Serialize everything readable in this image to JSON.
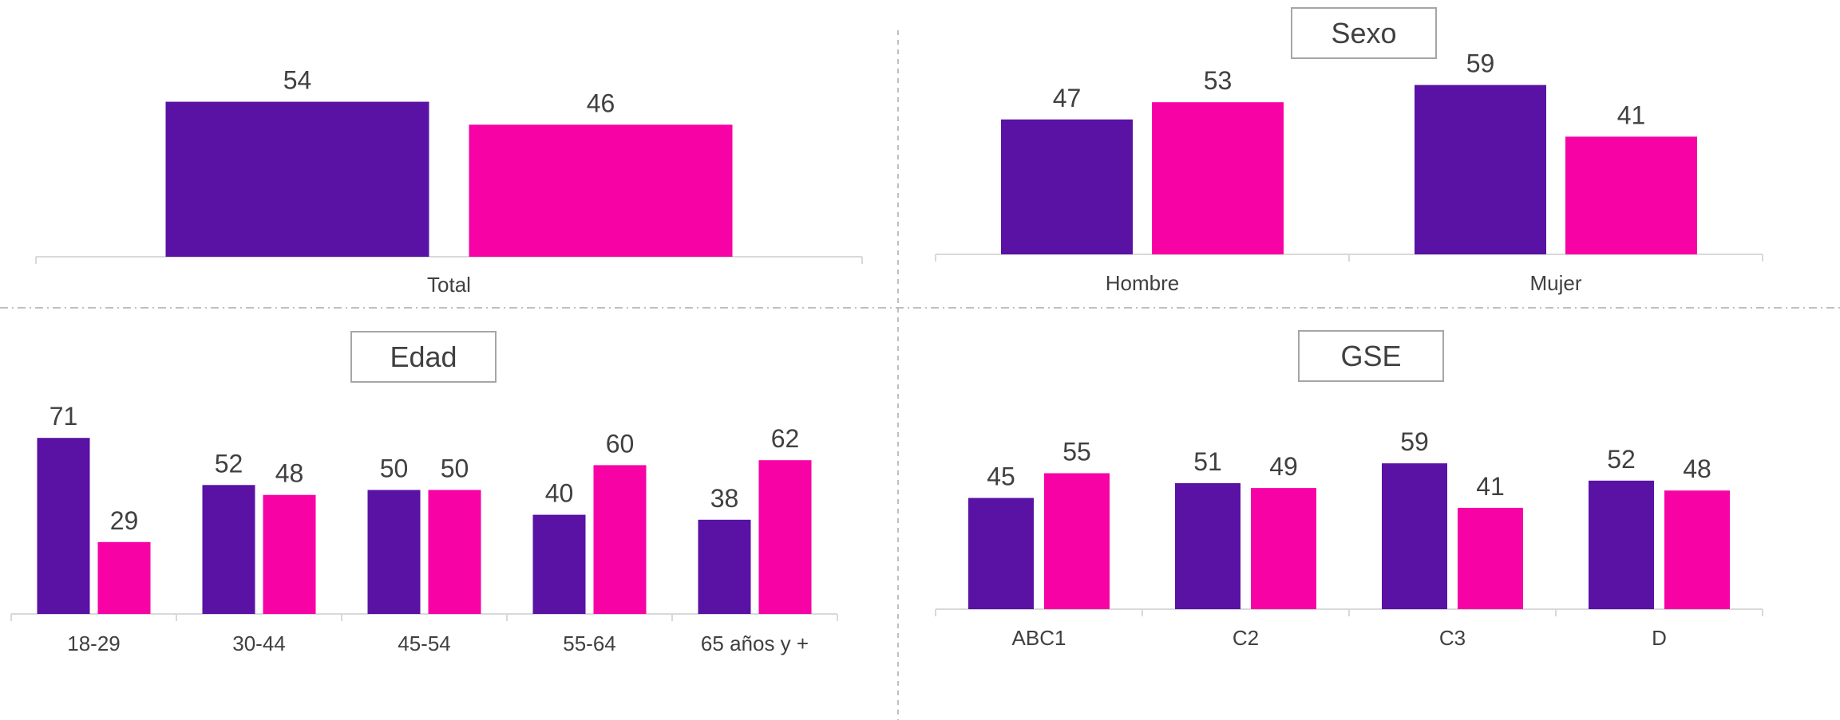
{
  "colors": {
    "series_a": "#5912a3",
    "series_b": "#f702a5",
    "axis": "#d9d9d9",
    "divider": "#bfbfbf",
    "text": "#404040"
  },
  "chart_data": [
    {
      "id": "total",
      "type": "bar",
      "title": "",
      "categories": [
        "Total"
      ],
      "series": [
        {
          "values": [
            54
          ]
        },
        {
          "values": [
            46
          ]
        }
      ],
      "ylim": [
        0,
        80
      ]
    },
    {
      "id": "sexo",
      "type": "bar",
      "title": "Sexo",
      "categories": [
        "Hombre",
        "Mujer"
      ],
      "series": [
        {
          "values": [
            47,
            59
          ]
        },
        {
          "values": [
            53,
            41
          ]
        }
      ],
      "ylim": [
        0,
        80
      ]
    },
    {
      "id": "edad",
      "type": "bar",
      "title": "Edad",
      "categories": [
        "18-29",
        "30-44",
        "45-54",
        "55-64",
        "65 años y +"
      ],
      "series": [
        {
          "values": [
            71,
            52,
            50,
            40,
            38
          ]
        },
        {
          "values": [
            29,
            48,
            50,
            60,
            62
          ]
        }
      ],
      "ylim": [
        0,
        80
      ]
    },
    {
      "id": "gse",
      "type": "bar",
      "title": "GSE",
      "categories": [
        "ABC1",
        "C2",
        "C3",
        "D"
      ],
      "series": [
        {
          "values": [
            45,
            51,
            59,
            52
          ]
        },
        {
          "values": [
            55,
            49,
            41,
            48
          ]
        }
      ],
      "ylim": [
        0,
        80
      ]
    }
  ]
}
